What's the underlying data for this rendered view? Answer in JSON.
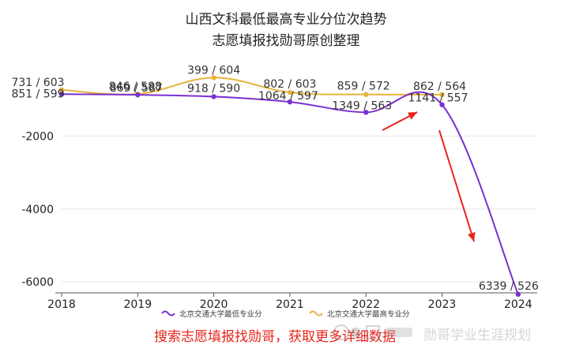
{
  "chart_data": {
    "type": "line",
    "title": "山西文科最低最高专业分位次趋势",
    "subtitle": "志愿填报找勋哥原创整理",
    "x": [
      "2018",
      "2019",
      "2020",
      "2021",
      "2022",
      "2023",
      "2024"
    ],
    "ylim": [
      -6300,
      0
    ],
    "yticks": [
      -2000,
      -4000,
      -6000
    ],
    "grid": true,
    "legend_position": "bottom",
    "series": [
      {
        "name": "北京交通大学最低专业分",
        "color": "#7b2fd1",
        "values": [
          -851,
          -869,
          -918,
          -1064,
          -1349,
          -1141,
          -6339
        ],
        "labels": [
          "851 / 599",
          "869 / 587",
          "918 / 590",
          "1064 / 597",
          "1349 / 563",
          "1141 / 557",
          "6339 / 526"
        ]
      },
      {
        "name": "北京交通大学最高专业分",
        "color": "#e6b43c",
        "values": [
          -731,
          -846,
          -399,
          -802,
          -859,
          -862,
          null
        ],
        "labels": [
          "731 / 603",
          "846 / 588",
          "399 / 604",
          "802 / 603",
          "859 / 572",
          "862 / 564",
          null
        ]
      }
    ]
  },
  "promo_text": "搜索志愿填报找勋哥，获取更多详细数据",
  "watermark_text": "勋哥学业生涯规划",
  "arrow_color": "#e8231c"
}
